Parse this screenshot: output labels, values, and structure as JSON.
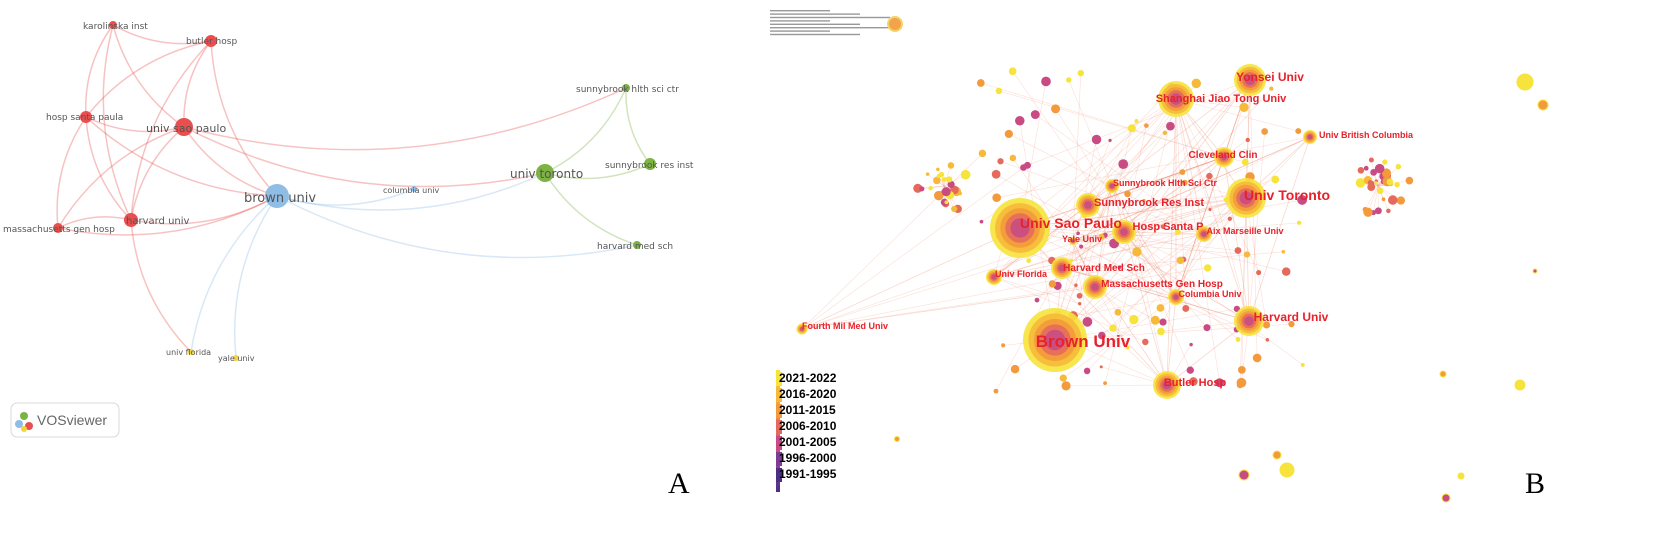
{
  "panel_a": {
    "letter": "A",
    "logo_text": "VOSviewer",
    "colors": {
      "red": "#e94f4f",
      "blue": "#8fbde6",
      "green": "#7cb342",
      "yellow": "#f2d43a"
    },
    "nodes": [
      {
        "id": "karolinska",
        "label": "karolinska inst",
        "cluster": "red",
        "weight": 1
      },
      {
        "id": "butler",
        "label": "butler hosp",
        "cluster": "red",
        "weight": 2
      },
      {
        "id": "hosp_santa",
        "label": "hosp santa paula",
        "cluster": "red",
        "weight": 2
      },
      {
        "id": "sao_paulo",
        "label": "univ sao paulo",
        "cluster": "red",
        "weight": 4
      },
      {
        "id": "mass_gen",
        "label": "massachusetts gen hosp",
        "cluster": "red",
        "weight": 2
      },
      {
        "id": "harvard",
        "label": "harvard univ",
        "cluster": "red",
        "weight": 3
      },
      {
        "id": "brown",
        "label": "brown univ",
        "cluster": "blue",
        "weight": 8
      },
      {
        "id": "columbia",
        "label": "columbia univ",
        "cluster": "blue",
        "weight": 1
      },
      {
        "id": "toronto",
        "label": "univ toronto",
        "cluster": "green",
        "weight": 5
      },
      {
        "id": "sunnybrook_hlth",
        "label": "sunnybrook hlth sci ctr",
        "cluster": "green",
        "weight": 1
      },
      {
        "id": "sunnybrook_res",
        "label": "sunnybrook res inst",
        "cluster": "green",
        "weight": 2
      },
      {
        "id": "harvard_med",
        "label": "harvard med sch",
        "cluster": "green",
        "weight": 1
      },
      {
        "id": "univ_florida",
        "label": "univ florida",
        "cluster": "yellow",
        "weight": 1
      },
      {
        "id": "yale",
        "label": "yale univ",
        "cluster": "yellow",
        "weight": 1
      }
    ],
    "links": [
      [
        "karolinska",
        "butler"
      ],
      [
        "karolinska",
        "sao_paulo"
      ],
      [
        "karolinska",
        "hosp_santa"
      ],
      [
        "karolinska",
        "harvard"
      ],
      [
        "butler",
        "sao_paulo"
      ],
      [
        "butler",
        "hosp_santa"
      ],
      [
        "butler",
        "brown"
      ],
      [
        "butler",
        "harvard"
      ],
      [
        "hosp_santa",
        "sao_paulo"
      ],
      [
        "hosp_santa",
        "harvard"
      ],
      [
        "hosp_santa",
        "mass_gen"
      ],
      [
        "hosp_santa",
        "brown"
      ],
      [
        "sao_paulo",
        "harvard"
      ],
      [
        "sao_paulo",
        "brown"
      ],
      [
        "sao_paulo",
        "mass_gen"
      ],
      [
        "sao_paulo",
        "toronto"
      ],
      [
        "harvard",
        "mass_gen"
      ],
      [
        "harvard",
        "brown"
      ],
      [
        "mass_gen",
        "brown"
      ],
      [
        "brown",
        "columbia"
      ],
      [
        "brown",
        "toronto"
      ],
      [
        "brown",
        "univ_florida"
      ],
      [
        "brown",
        "yale"
      ],
      [
        "harvard",
        "univ_florida"
      ],
      [
        "toronto",
        "sunnybrook_hlth"
      ],
      [
        "toronto",
        "sunnybrook_res"
      ],
      [
        "toronto",
        "harvard_med"
      ],
      [
        "sunnybrook_hlth",
        "sunnybrook_res"
      ],
      [
        "brown",
        "harvard_med"
      ],
      [
        "sao_paulo",
        "sunnybrook_hlth"
      ]
    ]
  },
  "panel_b": {
    "letter": "B",
    "legend": [
      "2021-2022",
      "2016-2020",
      "2011-2015",
      "2006-2010",
      "2001-2005",
      "1996-2000",
      "1991-1995"
    ],
    "legend_colors": [
      "#f6e33b",
      "#f6b93a",
      "#f39a3c",
      "#e56a5c",
      "#c84b84",
      "#7e3c96",
      "#4b2f83"
    ],
    "nodes": [
      {
        "id": "brown",
        "label": "Brown Univ",
        "weight": 10
      },
      {
        "id": "sao_paulo",
        "label": "Univ Sao Paulo",
        "weight": 9
      },
      {
        "id": "toronto",
        "label": "Univ Toronto",
        "weight": 6
      },
      {
        "id": "yonsei",
        "label": "Yonsei Univ",
        "weight": 5
      },
      {
        "id": "shanghai",
        "label": "Shanghai Jiao Tong Univ",
        "weight": 5
      },
      {
        "id": "harvard",
        "label": "Harvard Univ",
        "weight": 5
      },
      {
        "id": "butler",
        "label": "Butler Hosp",
        "weight": 4
      },
      {
        "id": "sunnybrook_res",
        "label": "Sunnybrook Res Inst",
        "weight": 4
      },
      {
        "id": "hosp_santa",
        "label": "Hosp Santa P",
        "weight": 3
      },
      {
        "id": "mass_gen",
        "label": "Massachusetts Gen Hosp",
        "weight": 3
      },
      {
        "id": "harvard_med",
        "label": "Harvard Med Sch",
        "weight": 3
      },
      {
        "id": "cleveland",
        "label": "Cleveland Clin",
        "weight": 3
      },
      {
        "id": "ubc",
        "label": "Univ British Columbia",
        "weight": 2
      },
      {
        "id": "sunnybrook_hlth",
        "label": "Sunnybrook Hlth Sci Ctr",
        "weight": 2
      },
      {
        "id": "aix",
        "label": "Aix Marseille Univ",
        "weight": 2
      },
      {
        "id": "yale",
        "label": "Yale Univ",
        "weight": 1
      },
      {
        "id": "univ_florida",
        "label": "Univ Florida",
        "weight": 2
      },
      {
        "id": "columbia",
        "label": "Columbia Univ",
        "weight": 2
      },
      {
        "id": "fourth_mil",
        "label": "Fourth Mil Med Univ",
        "weight": 1
      }
    ]
  }
}
